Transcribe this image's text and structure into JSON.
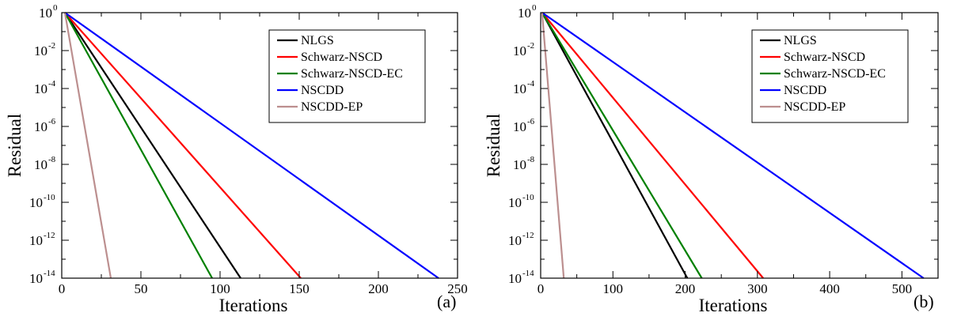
{
  "chart_data": [
    {
      "type": "line",
      "panel_label": "(a)",
      "xlabel": "Iterations",
      "ylabel": "Residual",
      "xlim": [
        0,
        250
      ],
      "ylim_exponent": [
        -14,
        0
      ],
      "yscale": "log",
      "xticks": [
        "0",
        "50",
        "100",
        "150",
        "200",
        "250"
      ],
      "yticks": [
        {
          "base": "10",
          "exp": "0",
          "value": 0
        },
        {
          "base": "10",
          "exp": "-2",
          "value": -2
        },
        {
          "base": "10",
          "exp": "-4",
          "value": -4
        },
        {
          "base": "10",
          "exp": "-6",
          "value": -6
        },
        {
          "base": "10",
          "exp": "-8",
          "value": -8
        },
        {
          "base": "10",
          "exp": "-10",
          "value": -10
        },
        {
          "base": "10",
          "exp": "-12",
          "value": -12
        },
        {
          "base": "10",
          "exp": "-14",
          "value": -14
        }
      ],
      "legend_position": "top-right",
      "grid": false,
      "series": [
        {
          "name": "NLGS",
          "color": "#000000",
          "x": [
            2,
            113
          ],
          "y_exponent": [
            0,
            -14
          ]
        },
        {
          "name": "Schwarz-NSCD",
          "color": "#ff0000",
          "x": [
            2,
            151
          ],
          "y_exponent": [
            0,
            -14
          ]
        },
        {
          "name": "Schwarz-NSCD-EC",
          "color": "#008000",
          "x": [
            2,
            95
          ],
          "y_exponent": [
            0,
            -14
          ]
        },
        {
          "name": "NSCDD",
          "color": "#0000ff",
          "x": [
            2,
            238
          ],
          "y_exponent": [
            0,
            -14
          ]
        },
        {
          "name": "NSCDD-EP",
          "color": "#bc8f8f",
          "x": [
            2,
            31
          ],
          "y_exponent": [
            0,
            -14
          ]
        }
      ]
    },
    {
      "type": "line",
      "panel_label": "(b)",
      "xlabel": "Iterations",
      "ylabel": "Residual",
      "xlim": [
        0,
        550
      ],
      "ylim_exponent": [
        -14,
        0
      ],
      "yscale": "log",
      "xticks": [
        "0",
        "100",
        "200",
        "300",
        "400",
        "500"
      ],
      "yticks": [
        {
          "base": "10",
          "exp": "0",
          "value": 0
        },
        {
          "base": "10",
          "exp": "-2",
          "value": -2
        },
        {
          "base": "10",
          "exp": "-4",
          "value": -4
        },
        {
          "base": "10",
          "exp": "-6",
          "value": -6
        },
        {
          "base": "10",
          "exp": "-8",
          "value": -8
        },
        {
          "base": "10",
          "exp": "-10",
          "value": -10
        },
        {
          "base": "10",
          "exp": "-12",
          "value": -12
        },
        {
          "base": "10",
          "exp": "-14",
          "value": -14
        }
      ],
      "legend_position": "top-right",
      "grid": false,
      "series": [
        {
          "name": "NLGS",
          "color": "#000000",
          "x": [
            2,
            203
          ],
          "y_exponent": [
            0,
            -14
          ]
        },
        {
          "name": "Schwarz-NSCD",
          "color": "#ff0000",
          "x": [
            2,
            308
          ],
          "y_exponent": [
            0,
            -14
          ]
        },
        {
          "name": "Schwarz-NSCD-EC",
          "color": "#008000",
          "x": [
            2,
            223
          ],
          "y_exponent": [
            0,
            -14
          ]
        },
        {
          "name": "NSCDD",
          "color": "#0000ff",
          "x": [
            2,
            530
          ],
          "y_exponent": [
            0,
            -14
          ]
        },
        {
          "name": "NSCDD-EP",
          "color": "#bc8f8f",
          "x": [
            2,
            32
          ],
          "y_exponent": [
            0,
            -14
          ]
        }
      ]
    }
  ]
}
